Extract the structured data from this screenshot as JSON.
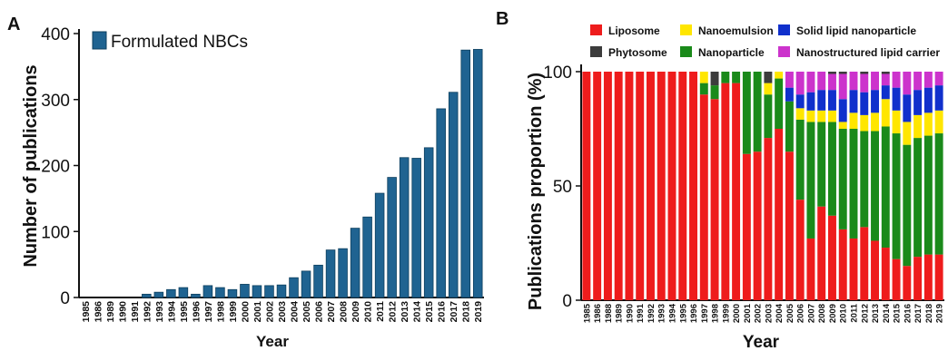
{
  "chart_data": [
    {
      "panel_label": "A",
      "type": "bar",
      "legend": [
        "Formulated NBCs"
      ],
      "xlabel": "Year",
      "ylabel": "Number of publications",
      "ylim": [
        0,
        400
      ],
      "yticks": [
        0,
        100,
        200,
        300,
        400
      ],
      "grid": false,
      "legend_position": "top-left",
      "colors": {
        "bar": "#1f6391",
        "bar_edge": "#0d3f5e"
      },
      "categories": [
        "1985",
        "1986",
        "1989",
        "1990",
        "1991",
        "1992",
        "1993",
        "1994",
        "1995",
        "1996",
        "1997",
        "1998",
        "1999",
        "2000",
        "2001",
        "2002",
        "2003",
        "2004",
        "2005",
        "2006",
        "2007",
        "2008",
        "2009",
        "2010",
        "2011",
        "2012",
        "2013",
        "2014",
        "2015",
        "2016",
        "2017",
        "2018",
        "2019"
      ],
      "values": [
        0,
        0,
        0,
        0,
        0,
        5,
        8,
        12,
        15,
        5,
        18,
        15,
        12,
        20,
        18,
        18,
        19,
        30,
        40,
        49,
        72,
        74,
        105,
        122,
        158,
        182,
        212,
        211,
        227,
        286,
        311,
        375,
        376
      ]
    },
    {
      "panel_label": "B",
      "type": "bar",
      "stacked": true,
      "xlabel": "Year",
      "ylabel": "Publications proportion (%)",
      "ylim": [
        0,
        100
      ],
      "yticks": [
        0,
        50,
        100
      ],
      "grid": false,
      "legend_position": "top",
      "categories": [
        "1985",
        "1986",
        "1988",
        "1989",
        "1990",
        "1991",
        "1992",
        "1993",
        "1994",
        "1995",
        "1996",
        "1997",
        "1998",
        "1999",
        "2000",
        "2001",
        "2002",
        "2003",
        "2004",
        "2005",
        "2006",
        "2007",
        "2008",
        "2009",
        "2010",
        "2011",
        "2012",
        "2013",
        "2014",
        "2015",
        "2016",
        "2017",
        "2018",
        "2019"
      ],
      "series": [
        {
          "name": "Liposome",
          "color": "#ee1c1c",
          "values": [
            100,
            100,
            100,
            100,
            100,
            100,
            100,
            100,
            100,
            100,
            100,
            90,
            88,
            95,
            95,
            64,
            65,
            71,
            75,
            65,
            44,
            27,
            41,
            37,
            31,
            27,
            32,
            26,
            23,
            18,
            15,
            19,
            20,
            20
          ]
        },
        {
          "name": "Nanoparticle",
          "color": "#1a8a1a",
          "values": [
            0,
            0,
            0,
            0,
            0,
            0,
            0,
            0,
            0,
            0,
            0,
            5,
            6,
            5,
            5,
            36,
            35,
            19,
            22,
            22,
            35,
            51,
            37,
            41,
            44,
            48,
            42,
            48,
            53,
            55,
            53,
            52,
            52,
            53
          ]
        },
        {
          "name": "Nanoemulsion",
          "color": "#ffe600",
          "values": [
            0,
            0,
            0,
            0,
            0,
            0,
            0,
            0,
            0,
            0,
            0,
            5,
            0,
            0,
            0,
            0,
            0,
            5,
            3,
            0,
            5,
            5,
            5,
            5,
            3,
            7,
            7,
            8,
            12,
            10,
            10,
            10,
            10,
            10
          ]
        },
        {
          "name": "Solid lipid nanoparticle",
          "color": "#1030cc",
          "values": [
            0,
            0,
            0,
            0,
            0,
            0,
            0,
            0,
            0,
            0,
            0,
            0,
            0,
            0,
            0,
            0,
            0,
            0,
            0,
            6,
            6,
            8,
            9,
            9,
            10,
            10,
            10,
            10,
            6,
            10,
            12,
            11,
            11,
            11
          ]
        },
        {
          "name": "Nanostructured lipid carrier",
          "color": "#cc33cc",
          "values": [
            0,
            0,
            0,
            0,
            0,
            0,
            0,
            0,
            0,
            0,
            0,
            0,
            0,
            0,
            0,
            0,
            0,
            0,
            0,
            7,
            10,
            9,
            8,
            7,
            11,
            8,
            8,
            8,
            5,
            7,
            10,
            8,
            7,
            6
          ]
        },
        {
          "name": "Phytosome",
          "color": "#3c3c3c",
          "values": [
            0,
            0,
            0,
            0,
            0,
            0,
            0,
            0,
            0,
            0,
            0,
            0,
            6,
            0,
            0,
            0,
            0,
            5,
            0,
            0,
            0,
            0,
            0,
            1,
            1,
            0,
            1,
            0,
            1,
            0,
            0,
            0,
            0,
            0
          ]
        }
      ],
      "legend_order": [
        "Liposome",
        "Nanoemulsion",
        "Solid lipid nanoparticle",
        "Phytosome",
        "Nanoparticle",
        "Nanostructured lipid carrier"
      ]
    }
  ]
}
